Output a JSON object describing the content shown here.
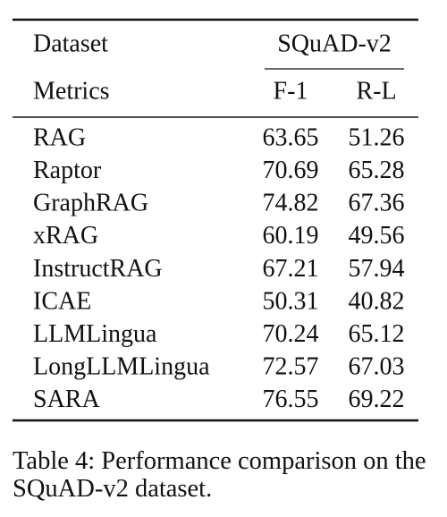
{
  "table": {
    "header": {
      "dataset": "Dataset",
      "group": "SQuAD-v2",
      "metrics": "Metrics",
      "columns": [
        "F-1",
        "R-L"
      ]
    },
    "rows": [
      [
        "RAG",
        63.65,
        51.26
      ],
      [
        "Raptor",
        70.69,
        65.28
      ],
      [
        "GraphRAG",
        74.82,
        67.36
      ],
      [
        "xRAG",
        60.19,
        49.56
      ],
      [
        "InstructRAG",
        67.21,
        57.94
      ],
      [
        "ICAE",
        50.31,
        40.82
      ],
      [
        "LLMLingua",
        70.24,
        65.12
      ],
      [
        "LongLLMLingua",
        72.57,
        67.03
      ],
      [
        "SARA",
        76.55,
        69.22
      ]
    ]
  },
  "caption": "Table 4: Performance comparison on the SQuAD-v2 dataset."
}
